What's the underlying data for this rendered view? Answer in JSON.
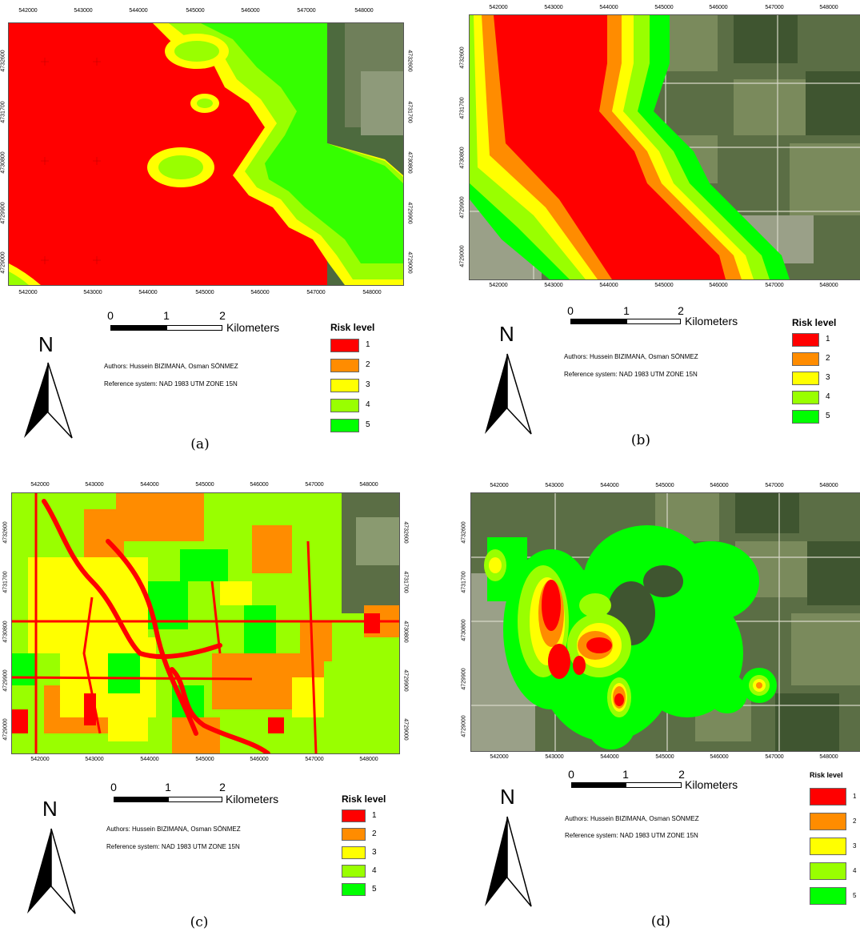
{
  "map_common": {
    "x_ticks": [
      "542000",
      "543000",
      "544000",
      "545000",
      "546000",
      "547000",
      "548000"
    ],
    "y_ticks": [
      "4732600",
      "4731700",
      "4730800",
      "4729900",
      "4729000"
    ],
    "scale": {
      "labels": [
        "0",
        "1",
        "2"
      ],
      "unit": "Kilometers"
    },
    "north_label": "N",
    "authors": "Authors: Hussein BIZIMANA, Osman SÖNMEZ",
    "reference": "Reference system: NAD 1983 UTM ZONE 15N",
    "legend_title": "Risk level",
    "legend": [
      {
        "label": "1",
        "color": "#ff0000"
      },
      {
        "label": "2",
        "color": "#ff8c00"
      },
      {
        "label": "3",
        "color": "#ffff00"
      },
      {
        "label": "4",
        "color": "#99ff00"
      },
      {
        "label": "5",
        "color": "#00ff00"
      }
    ]
  },
  "panels": [
    {
      "caption": "(a)",
      "map_type": "risk raster - red dominant with yellow/green fringe east, satellite imagery at east edge"
    },
    {
      "caption": "(b)",
      "map_type": "buffer zones over satellite imagery"
    },
    {
      "caption": "(c)",
      "map_type": "mixed risk raster, green dominant"
    },
    {
      "caption": "(d)",
      "map_type": "density hotspots over satellite imagery"
    }
  ]
}
